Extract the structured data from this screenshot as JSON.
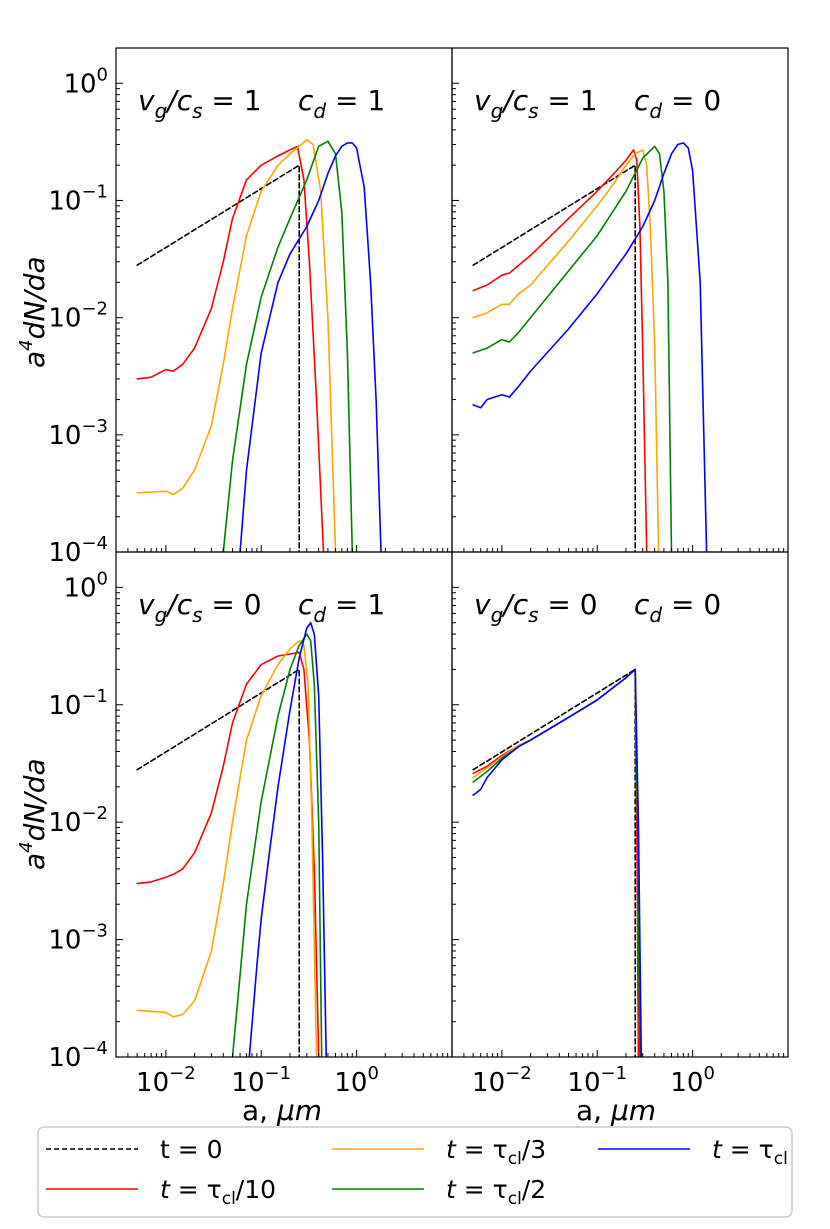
{
  "figure": {
    "xlabel_prefix": "a, ",
    "xlabel_unit": "μm",
    "ylabel_main": "a",
    "ylabel_sup": "4",
    "ylabel_rest": "dN/da"
  },
  "colors": {
    "t0": "#000000",
    "t_tenth": "#ff0000",
    "t_third": "#ffa500",
    "t_half": "#008000",
    "t_full": "#0000ff"
  },
  "legend": {
    "location": "bottom-center",
    "entries": [
      {
        "key": "t0",
        "label": "t = 0",
        "style": "dashed"
      },
      {
        "key": "t_tenth",
        "label": "t = τcl/10",
        "style": "solid"
      },
      {
        "key": "t_third",
        "label": "t = τcl/3",
        "style": "solid"
      },
      {
        "key": "t_half",
        "label": "t = τcl/2",
        "style": "solid"
      },
      {
        "key": "t_full",
        "label": "t = τcl",
        "style": "solid"
      }
    ]
  },
  "chart_data": [
    {
      "type": "line",
      "panel": "top-left",
      "annotation": {
        "vg_cs": "vg/cs = 1",
        "cd": "cd = 1"
      },
      "xscale": "log",
      "yscale": "log",
      "xlim": [
        0.003,
        10
      ],
      "ylim": [
        0.0001,
        2
      ],
      "xticks": [
        "10^-2",
        "10^-1",
        "10^0"
      ],
      "yticks": [
        "10^0",
        "10^-1",
        "10^-2",
        "10^-3",
        "10^-4"
      ],
      "series": [
        {
          "name": "t = 0",
          "key": "t0",
          "dashed": true,
          "x": [
            0.005,
            0.25,
            0.25
          ],
          "y": [
            0.028,
            0.2,
            0.0001
          ]
        },
        {
          "name": "t = τcl/10",
          "key": "t_tenth",
          "x": [
            0.005,
            0.007,
            0.01,
            0.012,
            0.015,
            0.02,
            0.03,
            0.04,
            0.05,
            0.07,
            0.1,
            0.15,
            0.2,
            0.24,
            0.28,
            0.32,
            0.38,
            0.45
          ],
          "y": [
            0.003,
            0.0031,
            0.0036,
            0.0035,
            0.004,
            0.0055,
            0.012,
            0.03,
            0.07,
            0.15,
            0.2,
            0.24,
            0.27,
            0.29,
            0.15,
            0.03,
            0.002,
            0.0001
          ]
        },
        {
          "name": "t = τcl/3",
          "key": "t_third",
          "x": [
            0.005,
            0.01,
            0.012,
            0.015,
            0.02,
            0.03,
            0.04,
            0.05,
            0.07,
            0.1,
            0.15,
            0.2,
            0.3,
            0.35,
            0.42,
            0.5,
            0.6
          ],
          "y": [
            0.00032,
            0.00033,
            0.00031,
            0.00035,
            0.0005,
            0.0012,
            0.004,
            0.012,
            0.05,
            0.12,
            0.2,
            0.25,
            0.33,
            0.3,
            0.12,
            0.01,
            0.0001
          ]
        },
        {
          "name": "t = τcl/2",
          "key": "t_half",
          "x": [
            0.04,
            0.05,
            0.07,
            0.1,
            0.15,
            0.2,
            0.3,
            0.4,
            0.5,
            0.6,
            0.7,
            0.8,
            0.9
          ],
          "y": [
            0.0001,
            0.0006,
            0.004,
            0.015,
            0.04,
            0.07,
            0.15,
            0.29,
            0.32,
            0.25,
            0.08,
            0.005,
            0.0001
          ]
        },
        {
          "name": "t = τcl",
          "key": "t_full",
          "x": [
            0.06,
            0.07,
            0.1,
            0.15,
            0.2,
            0.3,
            0.4,
            0.5,
            0.6,
            0.7,
            0.8,
            0.9,
            1.0,
            1.2,
            1.4,
            1.6,
            1.8
          ],
          "y": [
            0.0001,
            0.0005,
            0.005,
            0.02,
            0.035,
            0.06,
            0.1,
            0.17,
            0.24,
            0.29,
            0.31,
            0.31,
            0.28,
            0.13,
            0.02,
            0.002,
            0.0001
          ]
        }
      ]
    },
    {
      "type": "line",
      "panel": "top-right",
      "annotation": {
        "vg_cs": "vg/cs = 1",
        "cd": "cd = 0"
      },
      "xscale": "log",
      "yscale": "log",
      "xlim": [
        0.003,
        10
      ],
      "ylim": [
        0.0001,
        2
      ],
      "series": [
        {
          "name": "t = 0",
          "key": "t0",
          "dashed": true,
          "x": [
            0.005,
            0.25,
            0.25
          ],
          "y": [
            0.028,
            0.2,
            0.0001
          ]
        },
        {
          "name": "t = τcl/10",
          "key": "t_tenth",
          "x": [
            0.005,
            0.007,
            0.01,
            0.012,
            0.015,
            0.02,
            0.05,
            0.1,
            0.15,
            0.2,
            0.24,
            0.26,
            0.28,
            0.3,
            0.33
          ],
          "y": [
            0.017,
            0.019,
            0.023,
            0.024,
            0.028,
            0.034,
            0.07,
            0.12,
            0.17,
            0.22,
            0.27,
            0.22,
            0.06,
            0.005,
            0.0001
          ]
        },
        {
          "name": "t = τcl/3",
          "key": "t_third",
          "x": [
            0.005,
            0.007,
            0.01,
            0.012,
            0.015,
            0.02,
            0.05,
            0.1,
            0.15,
            0.2,
            0.25,
            0.3,
            0.33,
            0.36,
            0.4,
            0.44
          ],
          "y": [
            0.01,
            0.011,
            0.013,
            0.013,
            0.016,
            0.019,
            0.045,
            0.09,
            0.14,
            0.2,
            0.25,
            0.27,
            0.2,
            0.06,
            0.006,
            0.0001
          ]
        },
        {
          "name": "t = τcl/2",
          "key": "t_half",
          "x": [
            0.005,
            0.007,
            0.01,
            0.012,
            0.015,
            0.02,
            0.05,
            0.1,
            0.2,
            0.3,
            0.4,
            0.45,
            0.5,
            0.55,
            0.6
          ],
          "y": [
            0.005,
            0.0055,
            0.0065,
            0.0062,
            0.0075,
            0.01,
            0.025,
            0.05,
            0.12,
            0.23,
            0.29,
            0.25,
            0.12,
            0.02,
            0.0001
          ]
        },
        {
          "name": "t = τcl",
          "key": "t_full",
          "x": [
            0.005,
            0.006,
            0.007,
            0.01,
            0.012,
            0.015,
            0.02,
            0.05,
            0.1,
            0.2,
            0.3,
            0.4,
            0.5,
            0.6,
            0.7,
            0.8,
            0.9,
            1.0,
            1.2,
            1.4
          ],
          "y": [
            0.0018,
            0.0017,
            0.002,
            0.0022,
            0.0021,
            0.0026,
            0.0035,
            0.008,
            0.016,
            0.035,
            0.06,
            0.1,
            0.17,
            0.25,
            0.3,
            0.31,
            0.28,
            0.18,
            0.02,
            0.0001
          ]
        }
      ]
    },
    {
      "type": "line",
      "panel": "bottom-left",
      "annotation": {
        "vg_cs": "vg/cs = 0",
        "cd": "cd = 1"
      },
      "xscale": "log",
      "yscale": "log",
      "xlim": [
        0.003,
        10
      ],
      "ylim": [
        0.0001,
        2
      ],
      "xticks": [
        "10^-2",
        "10^-1",
        "10^0"
      ],
      "yticks": [
        "10^0",
        "10^-1",
        "10^-2",
        "10^-3",
        "10^-4"
      ],
      "series": [
        {
          "name": "t = 0",
          "key": "t0",
          "dashed": true,
          "x": [
            0.005,
            0.25,
            0.25
          ],
          "y": [
            0.028,
            0.2,
            0.0001
          ]
        },
        {
          "name": "t = τcl/10",
          "key": "t_tenth",
          "x": [
            0.005,
            0.007,
            0.01,
            0.012,
            0.015,
            0.02,
            0.03,
            0.04,
            0.05,
            0.07,
            0.1,
            0.15,
            0.2,
            0.25,
            0.28,
            0.32,
            0.36,
            0.4
          ],
          "y": [
            0.003,
            0.0031,
            0.0034,
            0.0036,
            0.004,
            0.0055,
            0.012,
            0.03,
            0.07,
            0.15,
            0.22,
            0.26,
            0.27,
            0.28,
            0.2,
            0.05,
            0.004,
            0.0001
          ]
        },
        {
          "name": "t = τcl/3",
          "key": "t_third",
          "x": [
            0.005,
            0.01,
            0.012,
            0.015,
            0.02,
            0.03,
            0.04,
            0.05,
            0.07,
            0.1,
            0.15,
            0.2,
            0.25,
            0.28,
            0.31,
            0.34,
            0.38
          ],
          "y": [
            0.00025,
            0.00024,
            0.00022,
            0.00023,
            0.0003,
            0.0008,
            0.003,
            0.01,
            0.05,
            0.12,
            0.22,
            0.3,
            0.35,
            0.32,
            0.15,
            0.01,
            0.0001
          ]
        },
        {
          "name": "t = τcl/2",
          "key": "t_half",
          "x": [
            0.05,
            0.06,
            0.07,
            0.1,
            0.15,
            0.2,
            0.25,
            0.3,
            0.33,
            0.36,
            0.4,
            0.43
          ],
          "y": [
            0.0001,
            0.0005,
            0.002,
            0.015,
            0.08,
            0.2,
            0.32,
            0.4,
            0.35,
            0.15,
            0.01,
            0.0001
          ]
        },
        {
          "name": "t = τcl",
          "key": "t_full",
          "x": [
            0.075,
            0.09,
            0.1,
            0.12,
            0.15,
            0.2,
            0.25,
            0.3,
            0.33,
            0.36,
            0.4,
            0.44,
            0.48
          ],
          "y": [
            0.0001,
            0.0006,
            0.0015,
            0.005,
            0.02,
            0.09,
            0.25,
            0.45,
            0.5,
            0.4,
            0.12,
            0.005,
            0.0001
          ]
        }
      ]
    },
    {
      "type": "line",
      "panel": "bottom-right",
      "annotation": {
        "vg_cs": "vg/cs = 0",
        "cd": "cd = 0"
      },
      "xscale": "log",
      "yscale": "log",
      "xlim": [
        0.003,
        10
      ],
      "ylim": [
        0.0001,
        2
      ],
      "series": [
        {
          "name": "t = 0",
          "key": "t0",
          "dashed": true,
          "x": [
            0.005,
            0.25,
            0.25
          ],
          "y": [
            0.028,
            0.2,
            0.0001
          ]
        },
        {
          "name": "t = τcl/10",
          "key": "t_tenth",
          "x": [
            0.005,
            0.007,
            0.01,
            0.015,
            0.02,
            0.05,
            0.1,
            0.2,
            0.25,
            0.26,
            0.27
          ],
          "y": [
            0.026,
            0.03,
            0.037,
            0.045,
            0.05,
            0.078,
            0.11,
            0.17,
            0.2,
            0.01,
            0.0001
          ]
        },
        {
          "name": "t = τcl/3",
          "key": "t_third",
          "x": [
            0.005,
            0.007,
            0.01,
            0.015,
            0.02,
            0.05,
            0.1,
            0.2,
            0.25,
            0.265,
            0.28
          ],
          "y": [
            0.024,
            0.029,
            0.036,
            0.045,
            0.05,
            0.078,
            0.11,
            0.17,
            0.2,
            0.01,
            0.0001
          ]
        },
        {
          "name": "t = τcl/2",
          "key": "t_half",
          "x": [
            0.005,
            0.007,
            0.01,
            0.015,
            0.02,
            0.05,
            0.1,
            0.2,
            0.25,
            0.265,
            0.28
          ],
          "y": [
            0.022,
            0.027,
            0.035,
            0.044,
            0.05,
            0.078,
            0.11,
            0.17,
            0.2,
            0.01,
            0.0001
          ]
        },
        {
          "name": "t = τcl",
          "key": "t_full",
          "x": [
            0.005,
            0.006,
            0.007,
            0.01,
            0.015,
            0.02,
            0.05,
            0.1,
            0.2,
            0.25,
            0.27,
            0.29
          ],
          "y": [
            0.017,
            0.019,
            0.024,
            0.034,
            0.044,
            0.05,
            0.078,
            0.11,
            0.17,
            0.2,
            0.01,
            0.0001
          ]
        }
      ]
    }
  ]
}
